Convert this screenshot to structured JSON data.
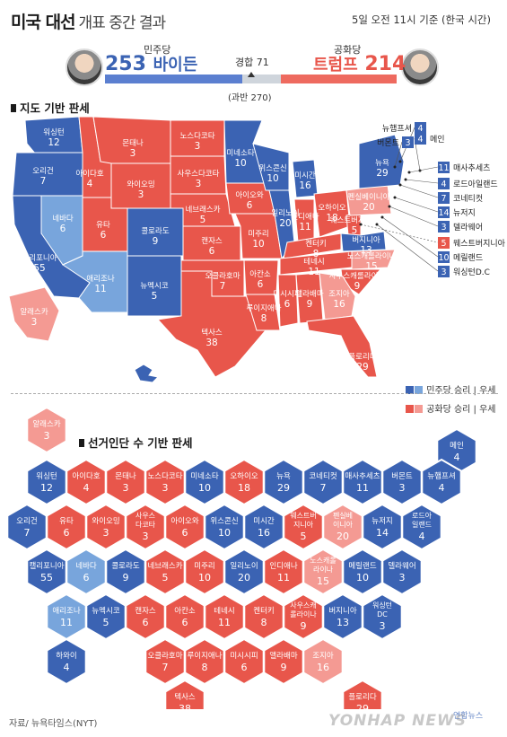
{
  "header": {
    "title_main": "미국 대선",
    "title_sub": "개표 중간 결과",
    "timestamp": "5일 오전 11시 기준 (한국 시간)",
    "dem": {
      "party": "민주당",
      "votes": "253",
      "name": "바이든"
    },
    "rep": {
      "party": "공화당",
      "votes": "214",
      "name": "트럼프"
    },
    "tossup": "경합 71",
    "majority": "(과반 270)"
  },
  "bar": {
    "dem": 253,
    "tossup": 71,
    "rep": 214,
    "total": 538
  },
  "map_section": {
    "heading": "지도 기반 판세",
    "legend_dem": "민주당 승리 | 우세",
    "legend_rep": "공화당 승리 | 우세"
  },
  "hex_section": {
    "heading": "선거인단 수 기반 판세",
    "source": "자료/ 뉴욕타임스(NYT)",
    "watermark": "YONHAP NEWS",
    "agency": "연합뉴스"
  },
  "colors": {
    "dem_win": "#3b63b3",
    "dem_lean": "#78a5dc",
    "rep_win": "#e8564b",
    "rep_lean": "#f49a93"
  },
  "map_states": [
    {
      "name": "워싱턴",
      "votes": "12",
      "status": "dem"
    },
    {
      "name": "오리건",
      "votes": "7",
      "status": "dem"
    },
    {
      "name": "캘리포니아",
      "votes": "55",
      "status": "dem"
    },
    {
      "name": "네바다",
      "votes": "6",
      "status": "dem_lean"
    },
    {
      "name": "아이다호",
      "votes": "4",
      "status": "rep"
    },
    {
      "name": "몬태나",
      "votes": "3",
      "status": "rep"
    },
    {
      "name": "와이오밍",
      "votes": "3",
      "status": "rep"
    },
    {
      "name": "유타",
      "votes": "6",
      "status": "rep"
    },
    {
      "name": "애리조나",
      "votes": "11",
      "status": "dem_lean"
    },
    {
      "name": "콜로라도",
      "votes": "9",
      "status": "dem"
    },
    {
      "name": "뉴멕시코",
      "votes": "5",
      "status": "dem"
    },
    {
      "name": "노스다코타",
      "votes": "3",
      "status": "rep"
    },
    {
      "name": "사우스다코타",
      "votes": "3",
      "status": "rep"
    },
    {
      "name": "네브래스카",
      "votes": "5",
      "status": "rep"
    },
    {
      "name": "캔자스",
      "votes": "6",
      "status": "rep"
    },
    {
      "name": "오클라호마",
      "votes": "7",
      "status": "rep"
    },
    {
      "name": "텍사스",
      "votes": "38",
      "status": "rep"
    },
    {
      "name": "미네소타",
      "votes": "10",
      "status": "dem"
    },
    {
      "name": "아이오와",
      "votes": "6",
      "status": "rep"
    },
    {
      "name": "미주리",
      "votes": "10",
      "status": "rep"
    },
    {
      "name": "아칸소",
      "votes": "6",
      "status": "rep"
    },
    {
      "name": "루이지애나",
      "votes": "8",
      "status": "rep"
    },
    {
      "name": "위스콘신",
      "votes": "10",
      "status": "dem"
    },
    {
      "name": "일리노이",
      "votes": "20",
      "status": "dem"
    },
    {
      "name": "미시간",
      "votes": "16",
      "status": "dem"
    },
    {
      "name": "인디애나",
      "votes": "11",
      "status": "rep"
    },
    {
      "name": "켄터키",
      "votes": "8",
      "status": "rep"
    },
    {
      "name": "테네시",
      "votes": "11",
      "status": "rep"
    },
    {
      "name": "미시시피",
      "votes": "6",
      "status": "rep"
    },
    {
      "name": "앨라배마",
      "votes": "9",
      "status": "rep"
    },
    {
      "name": "오하이오",
      "votes": "18",
      "status": "rep"
    },
    {
      "name": "웨스트버지니아",
      "votes": "5",
      "status": "rep"
    },
    {
      "name": "버지니아",
      "votes": "13",
      "status": "dem"
    },
    {
      "name": "노스캐롤라이나",
      "votes": "15",
      "status": "rep_lean"
    },
    {
      "name": "사우스캐롤라이나",
      "votes": "9",
      "status": "rep"
    },
    {
      "name": "조지아",
      "votes": "16",
      "status": "rep_lean"
    },
    {
      "name": "플로리다",
      "votes": "29",
      "status": "rep"
    },
    {
      "name": "펜실베이니아",
      "votes": "20",
      "status": "rep_lean"
    },
    {
      "name": "뉴욕",
      "votes": "29",
      "status": "dem"
    },
    {
      "name": "알래스카",
      "votes": "3",
      "status": "rep_lean"
    },
    {
      "name": "하와이",
      "votes": "4",
      "status": "dem"
    }
  ],
  "callouts": [
    {
      "name": "뉴햄프셔",
      "votes": "4",
      "status": "dem"
    },
    {
      "name": "버몬트",
      "votes": "3",
      "status": "dem"
    },
    {
      "name": "메인",
      "votes": "4",
      "status": "dem"
    },
    {
      "name": "매사추세츠",
      "votes": "11",
      "status": "dem"
    },
    {
      "name": "로드아일랜드",
      "votes": "4",
      "status": "dem"
    },
    {
      "name": "코네티컷",
      "votes": "7",
      "status": "dem"
    },
    {
      "name": "뉴저지",
      "votes": "14",
      "status": "dem"
    },
    {
      "name": "델라웨어",
      "votes": "3",
      "status": "dem"
    },
    {
      "name": "웨스트버지니아",
      "votes": "5",
      "status": "rep"
    },
    {
      "name": "메릴랜드",
      "votes": "10",
      "status": "dem"
    },
    {
      "name": "워싱턴D.C",
      "votes": "3",
      "status": "dem"
    }
  ],
  "hexes": [
    {
      "name": "알래스카",
      "votes": "3",
      "status": "rep_lean"
    },
    {
      "name": "메인",
      "votes": "4",
      "status": "dem"
    },
    {
      "name": "워싱턴",
      "votes": "12",
      "status": "dem"
    },
    {
      "name": "아이다호",
      "votes": "4",
      "status": "rep"
    },
    {
      "name": "몬태나",
      "votes": "3",
      "status": "rep"
    },
    {
      "name": "노스다코타",
      "votes": "3",
      "status": "rep"
    },
    {
      "name": "미네소타",
      "votes": "10",
      "status": "dem"
    },
    {
      "name": "오하이오",
      "votes": "18",
      "status": "rep"
    },
    {
      "name": "뉴욕",
      "votes": "29",
      "status": "dem"
    },
    {
      "name": "코네티컷",
      "votes": "7",
      "status": "dem"
    },
    {
      "name": "매사추세츠",
      "votes": "11",
      "status": "dem"
    },
    {
      "name": "버몬트",
      "votes": "3",
      "status": "dem"
    },
    {
      "name": "뉴햄프셔",
      "votes": "4",
      "status": "dem"
    },
    {
      "name": "오리건",
      "votes": "7",
      "status": "dem"
    },
    {
      "name": "유타",
      "votes": "6",
      "status": "rep"
    },
    {
      "name": "와이오밍",
      "votes": "3",
      "status": "rep"
    },
    {
      "name": "사우스다코타",
      "votes": "3",
      "status": "rep"
    },
    {
      "name": "아이오와",
      "votes": "6",
      "status": "rep"
    },
    {
      "name": "위스콘신",
      "votes": "10",
      "status": "dem"
    },
    {
      "name": "미시간",
      "votes": "16",
      "status": "dem"
    },
    {
      "name": "웨스트버지니아",
      "votes": "5",
      "status": "rep"
    },
    {
      "name": "펜실베이니아",
      "votes": "20",
      "status": "rep_lean"
    },
    {
      "name": "뉴저지",
      "votes": "14",
      "status": "dem"
    },
    {
      "name": "로드아일랜드",
      "votes": "4",
      "status": "dem"
    },
    {
      "name": "캘리포니아",
      "votes": "55",
      "status": "dem"
    },
    {
      "name": "네바다",
      "votes": "6",
      "status": "dem_lean"
    },
    {
      "name": "콜로라도",
      "votes": "9",
      "status": "dem"
    },
    {
      "name": "네브래스카",
      "votes": "5",
      "status": "rep"
    },
    {
      "name": "미주리",
      "votes": "10",
      "status": "rep"
    },
    {
      "name": "일리노이",
      "votes": "20",
      "status": "dem"
    },
    {
      "name": "인디애나",
      "votes": "11",
      "status": "rep"
    },
    {
      "name": "노스캐롤라이나",
      "votes": "15",
      "status": "rep_lean"
    },
    {
      "name": "메릴랜드",
      "votes": "10",
      "status": "dem"
    },
    {
      "name": "델라웨어",
      "votes": "3",
      "status": "dem"
    },
    {
      "name": "애리조나",
      "votes": "11",
      "status": "dem_lean"
    },
    {
      "name": "뉴멕시코",
      "votes": "5",
      "status": "dem"
    },
    {
      "name": "캔자스",
      "votes": "6",
      "status": "rep"
    },
    {
      "name": "아칸소",
      "votes": "6",
      "status": "rep"
    },
    {
      "name": "테네시",
      "votes": "11",
      "status": "rep"
    },
    {
      "name": "켄터키",
      "votes": "8",
      "status": "rep"
    },
    {
      "name": "사우스캐롤라이나",
      "votes": "9",
      "status": "rep"
    },
    {
      "name": "버지니아",
      "votes": "13",
      "status": "dem"
    },
    {
      "name": "워싱턴 DC",
      "votes": "3",
      "status": "dem"
    },
    {
      "name": "하와이",
      "votes": "4",
      "status": "dem"
    },
    {
      "name": "오클라호마",
      "votes": "7",
      "status": "rep"
    },
    {
      "name": "루이지애나",
      "votes": "8",
      "status": "rep"
    },
    {
      "name": "미시시피",
      "votes": "6",
      "status": "rep"
    },
    {
      "name": "앨라배마",
      "votes": "9",
      "status": "rep"
    },
    {
      "name": "조지아",
      "votes": "16",
      "status": "rep_lean"
    },
    {
      "name": "텍사스",
      "votes": "38",
      "status": "rep"
    },
    {
      "name": "플로리다",
      "votes": "29",
      "status": "rep"
    }
  ]
}
